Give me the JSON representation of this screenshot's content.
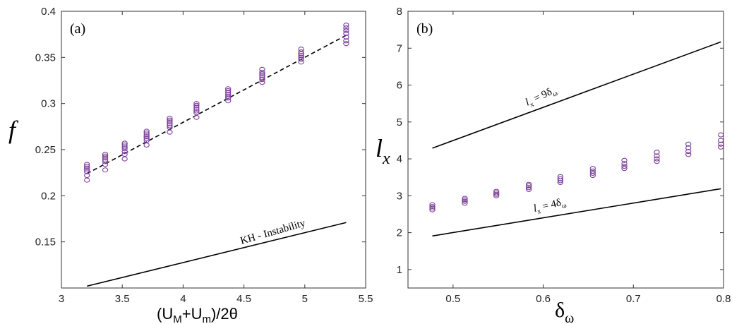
{
  "chart_data": [
    {
      "type": "scatter",
      "panel_label": "(a)",
      "xlabel": "(U_M+U_m)/2θ",
      "ylabel": "f",
      "xlim": [
        3,
        5.5
      ],
      "ylim": [
        0.1,
        0.4
      ],
      "xticks": [
        "3",
        "3.5",
        "4",
        "4.5",
        "5",
        "5.5"
      ],
      "yticks": [
        "0.15",
        "0.2",
        "0.25",
        "0.3",
        "0.35",
        "0.4"
      ],
      "grid": false,
      "marker_color": "#7B3F98",
      "line_color": "#000000",
      "series": [
        {
          "x": [
            3.21,
            3.36,
            3.52,
            3.7,
            3.89,
            4.11,
            4.37,
            4.65,
            4.97,
            5.34
          ],
          "y_points": [
            [
              0.217,
              0.222,
              0.226,
              0.228,
              0.23,
              0.232,
              0.234
            ],
            [
              0.228,
              0.234,
              0.237,
              0.239,
              0.241,
              0.243,
              0.245
            ],
            [
              0.24,
              0.245,
              0.248,
              0.251,
              0.253,
              0.255,
              0.257
            ],
            [
              0.255,
              0.26,
              0.262,
              0.264,
              0.266,
              0.268,
              0.27
            ],
            [
              0.269,
              0.274,
              0.276,
              0.278,
              0.28,
              0.282,
              0.284
            ],
            [
              0.285,
              0.29,
              0.292,
              0.294,
              0.296,
              0.298,
              0.3
            ],
            [
              0.303,
              0.306,
              0.308,
              0.31,
              0.312,
              0.314,
              0.316
            ],
            [
              0.323,
              0.326,
              0.328,
              0.33,
              0.332,
              0.334,
              0.337
            ],
            [
              0.345,
              0.348,
              0.35,
              0.352,
              0.354,
              0.356,
              0.359
            ],
            [
              0.365,
              0.368,
              0.372,
              0.376,
              0.379,
              0.382,
              0.385
            ]
          ]
        }
      ],
      "lines": [
        {
          "style": "dashed",
          "x": [
            3.21,
            5.34
          ],
          "y": [
            0.224,
            0.374
          ],
          "label": ""
        },
        {
          "style": "solid",
          "x": [
            3.21,
            5.34
          ],
          "y": [
            0.102,
            0.171
          ],
          "label": "KH - Instability"
        }
      ]
    },
    {
      "type": "scatter",
      "panel_label": "(b)",
      "xlabel": "δ_ω",
      "ylabel": "l_x",
      "xlim": [
        0.45,
        0.8
      ],
      "ylim": [
        0.5,
        8
      ],
      "xticks": [
        "0.5",
        "0.6",
        "0.7",
        "0.8"
      ],
      "yticks": [
        "1",
        "2",
        "3",
        "4",
        "5",
        "6",
        "7",
        "8"
      ],
      "grid": false,
      "marker_color": "#7B3F98",
      "line_color": "#000000",
      "series": [
        {
          "x": [
            0.477,
            0.513,
            0.548,
            0.584,
            0.619,
            0.655,
            0.69,
            0.726,
            0.761,
            0.797
          ],
          "y_points": [
            [
              2.62,
              2.67,
              2.71,
              2.76
            ],
            [
              2.8,
              2.85,
              2.89,
              2.93
            ],
            [
              3.0,
              3.04,
              3.08,
              3.12
            ],
            [
              3.17,
              3.22,
              3.27,
              3.31
            ],
            [
              3.36,
              3.41,
              3.46,
              3.52
            ],
            [
              3.55,
              3.61,
              3.67,
              3.74
            ],
            [
              3.74,
              3.8,
              3.87,
              3.96
            ],
            [
              3.93,
              4.0,
              4.08,
              4.18
            ],
            [
              4.12,
              4.2,
              4.3,
              4.4
            ],
            [
              4.32,
              4.4,
              4.5,
              4.65
            ]
          ]
        }
      ],
      "lines": [
        {
          "style": "solid",
          "x": [
            0.477,
            0.797
          ],
          "y": [
            4.29,
            7.17
          ],
          "label": "l_x = 9δ_ω"
        },
        {
          "style": "solid",
          "x": [
            0.477,
            0.797
          ],
          "y": [
            1.91,
            3.19
          ],
          "label": "l_x = 4δ_ω"
        }
      ]
    }
  ]
}
